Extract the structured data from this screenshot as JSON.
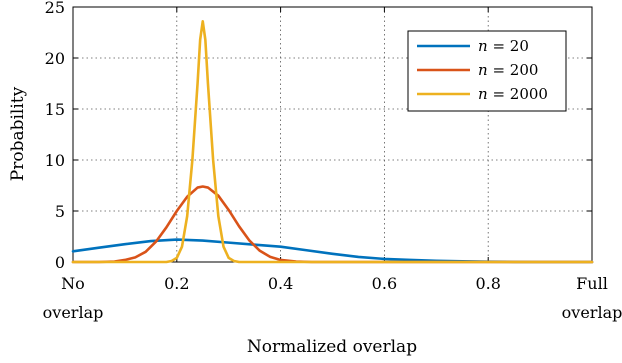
{
  "chart_data": {
    "type": "line",
    "title": "",
    "xlabel": "Normalized overlap",
    "ylabel": "Probability",
    "xlim": [
      0,
      1
    ],
    "ylim": [
      0,
      25
    ],
    "grid": true,
    "legend_position": "top-right",
    "x_ticks": [
      {
        "value": 0,
        "lines": [
          "No",
          "overlap"
        ]
      },
      {
        "value": 0.2,
        "lines": [
          "0.2"
        ]
      },
      {
        "value": 0.4,
        "lines": [
          "0.4"
        ]
      },
      {
        "value": 0.6,
        "lines": [
          "0.6"
        ]
      },
      {
        "value": 0.8,
        "lines": [
          "0.8"
        ]
      },
      {
        "value": 1,
        "lines": [
          "Full",
          "overlap"
        ]
      }
    ],
    "y_ticks": [
      0,
      5,
      10,
      15,
      20,
      25
    ],
    "series": [
      {
        "name": "n = 20",
        "label_var": "n",
        "label_value": "20",
        "color": "#0072BD",
        "x": [
          0,
          0.05,
          0.1,
          0.15,
          0.2,
          0.25,
          0.3,
          0.35,
          0.4,
          0.45,
          0.5,
          0.55,
          0.6,
          0.65,
          0.7,
          0.75,
          0.8,
          0.85,
          0.9,
          0.95,
          1.0
        ],
        "y": [
          1.05,
          1.4,
          1.75,
          2.05,
          2.2,
          2.1,
          1.9,
          1.7,
          1.5,
          1.15,
          0.8,
          0.5,
          0.3,
          0.2,
          0.12,
          0.07,
          0.03,
          0.01,
          0.0,
          0.0,
          0.0
        ]
      },
      {
        "name": "n = 200",
        "label_var": "n",
        "label_value": "200",
        "color": "#D95319",
        "x": [
          0,
          0.05,
          0.08,
          0.1,
          0.12,
          0.14,
          0.16,
          0.18,
          0.2,
          0.22,
          0.24,
          0.25,
          0.26,
          0.28,
          0.3,
          0.32,
          0.34,
          0.36,
          0.38,
          0.4,
          0.43,
          0.46,
          0.5,
          1.0
        ],
        "y": [
          0,
          0.0,
          0.05,
          0.2,
          0.45,
          1.0,
          2.0,
          3.4,
          5.0,
          6.4,
          7.3,
          7.4,
          7.3,
          6.5,
          5.1,
          3.5,
          2.1,
          1.1,
          0.5,
          0.2,
          0.05,
          0.0,
          0.0,
          0.0
        ]
      },
      {
        "name": "n = 2000",
        "label_var": "n",
        "label_value": "2000",
        "color": "#EDB120",
        "x": [
          0,
          0.18,
          0.19,
          0.2,
          0.21,
          0.22,
          0.23,
          0.24,
          0.245,
          0.25,
          0.255,
          0.26,
          0.27,
          0.28,
          0.29,
          0.3,
          0.31,
          0.32,
          1.0
        ],
        "y": [
          0,
          0.0,
          0.1,
          0.4,
          1.5,
          4.5,
          10.0,
          17.5,
          21.8,
          23.6,
          21.8,
          17.5,
          10.0,
          4.5,
          1.5,
          0.4,
          0.1,
          0.0,
          0.0
        ]
      }
    ]
  }
}
